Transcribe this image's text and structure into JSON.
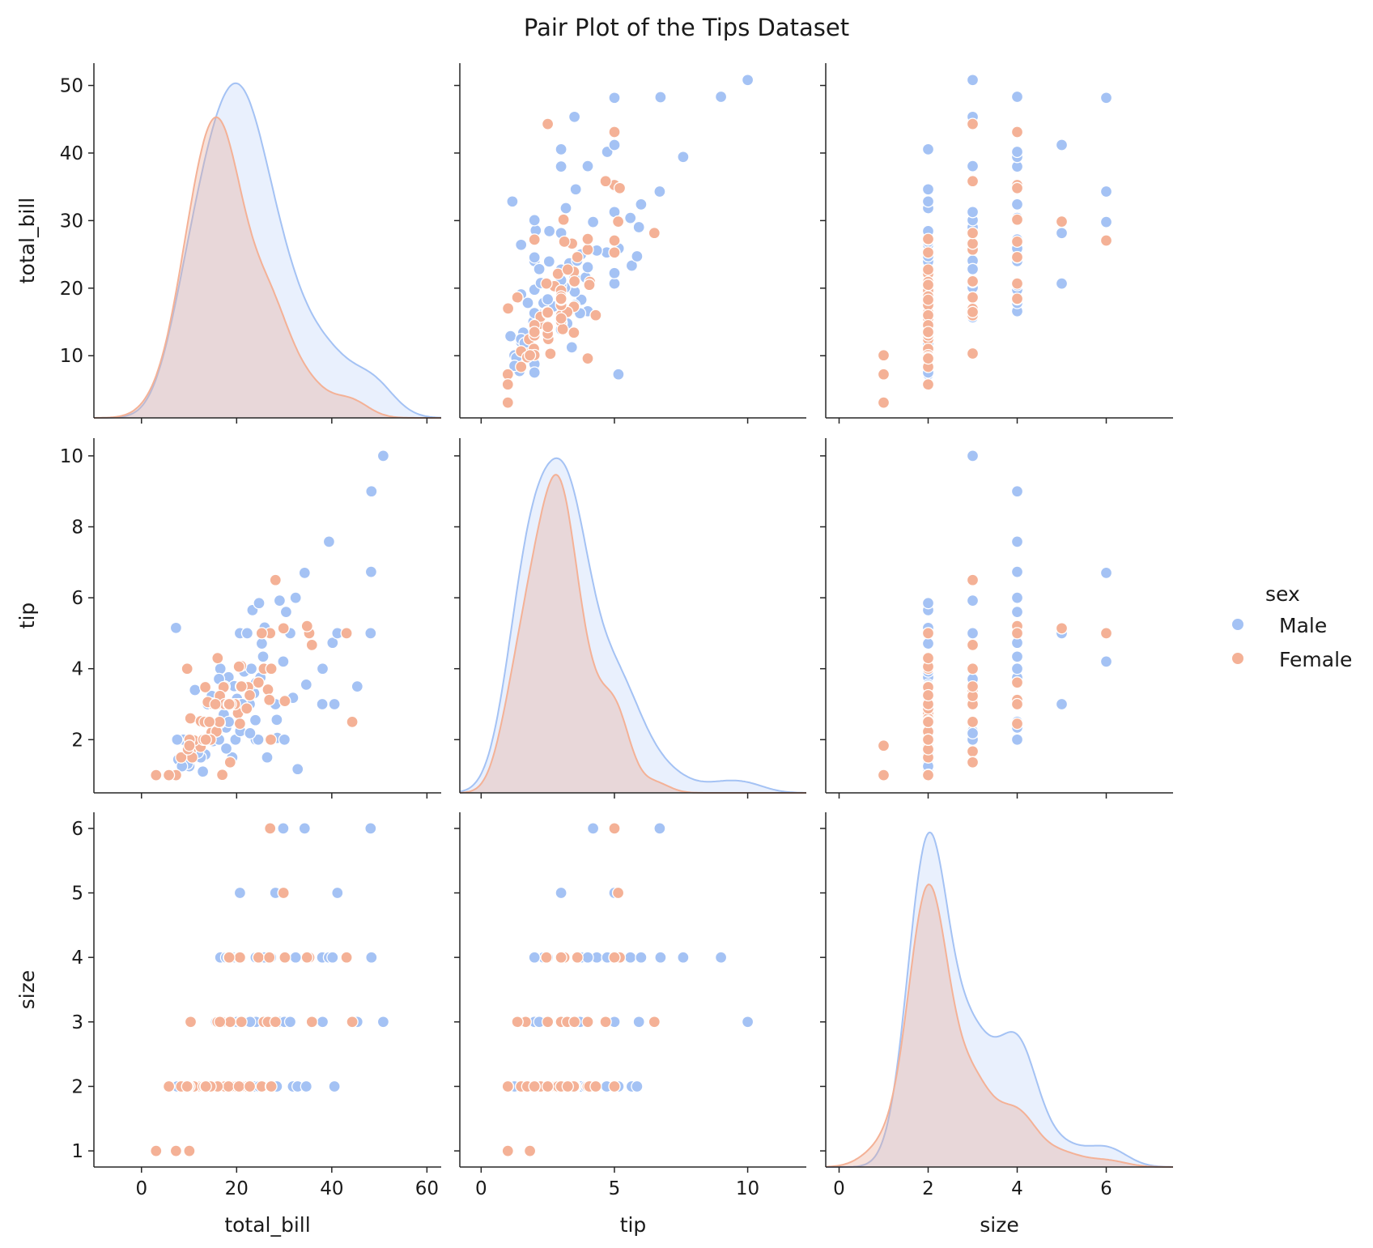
{
  "chart_data": {
    "type": "scatter",
    "title": "Pair Plot of the Tips Dataset",
    "variables": [
      "total_bill",
      "tip",
      "size"
    ],
    "legend": {
      "title": "sex",
      "placement": "right",
      "entries": [
        "Male",
        "Female"
      ]
    },
    "colors": {
      "Male": "#a4c2f4",
      "Female": "#f4b196"
    },
    "axes": {
      "total_bill": {
        "label": "total_bill",
        "lim": [
          -10,
          63
        ],
        "ticks": [
          0,
          20,
          40,
          60
        ],
        "side_lim": [
          0.8,
          53.3
        ],
        "side_ticks": [
          10,
          20,
          30,
          40,
          50
        ]
      },
      "tip": {
        "label": "tip",
        "lim": [
          -0.8,
          12.2
        ],
        "ticks": [
          0,
          5,
          10
        ],
        "side_lim": [
          0.5,
          10.5
        ],
        "side_ticks": [
          2,
          4,
          6,
          8,
          10
        ]
      },
      "size": {
        "label": "size",
        "lim": [
          -0.3,
          7.5
        ],
        "ticks": [
          0,
          2,
          4,
          6
        ],
        "side_lim": [
          0.75,
          6.25
        ],
        "side_ticks": [
          1,
          2,
          3,
          4,
          5,
          6
        ]
      }
    },
    "series": [
      {
        "name": "Male",
        "points": [
          [
            7.25,
            5.15,
            2
          ],
          [
            7.74,
            1.44,
            2
          ],
          [
            8.77,
            2.0,
            2
          ],
          [
            9.55,
            1.45,
            2
          ],
          [
            10.07,
            1.25,
            2
          ],
          [
            10.33,
            2.0,
            2
          ],
          [
            11.24,
            3.4,
            2
          ],
          [
            12.03,
            1.5,
            2
          ],
          [
            12.9,
            1.1,
            2
          ],
          [
            13.0,
            2.0,
            2
          ],
          [
            13.42,
            1.58,
            2
          ],
          [
            13.9,
            3.0,
            2
          ],
          [
            14.07,
            2.5,
            2
          ],
          [
            14.78,
            3.23,
            2
          ],
          [
            15.04,
            1.96,
            2
          ],
          [
            15.77,
            2.23,
            2
          ],
          [
            16.04,
            2.24,
            3
          ],
          [
            16.31,
            2.0,
            3
          ],
          [
            16.58,
            4.0,
            4
          ],
          [
            16.93,
            3.07,
            3
          ],
          [
            17.29,
            2.71,
            2
          ],
          [
            17.81,
            2.34,
            4
          ],
          [
            18.04,
            3.0,
            2
          ],
          [
            18.29,
            3.76,
            2
          ],
          [
            18.35,
            2.5,
            4
          ],
          [
            19.08,
            1.5,
            2
          ],
          [
            19.44,
            3.0,
            2
          ],
          [
            19.49,
            3.51,
            2
          ],
          [
            19.77,
            2.0,
            4
          ],
          [
            20.08,
            3.15,
            3
          ],
          [
            20.29,
            2.75,
            2
          ],
          [
            20.69,
            5.0,
            5
          ],
          [
            20.76,
            2.24,
            2
          ],
          [
            21.01,
            3.5,
            3
          ],
          [
            21.58,
            3.92,
            2
          ],
          [
            22.23,
            5.0,
            2
          ],
          [
            22.49,
            3.5,
            2
          ],
          [
            22.76,
            3.0,
            2
          ],
          [
            23.1,
            4.0,
            3
          ],
          [
            23.33,
            5.65,
            2
          ],
          [
            23.68,
            3.31,
            2
          ],
          [
            24.01,
            2.0,
            4
          ],
          [
            24.06,
            3.6,
            3
          ],
          [
            24.55,
            2.0,
            4
          ],
          [
            25.0,
            3.75,
            4
          ],
          [
            25.29,
            4.71,
            2
          ],
          [
            25.56,
            4.34,
            4
          ],
          [
            25.89,
            5.16,
            4
          ],
          [
            26.41,
            1.5,
            2
          ],
          [
            26.86,
            3.14,
            2
          ],
          [
            28.15,
            3.0,
            5
          ],
          [
            28.44,
            2.56,
            2
          ],
          [
            28.55,
            2.05,
            3
          ],
          [
            29.03,
            5.92,
            3
          ],
          [
            30.06,
            2.0,
            3
          ],
          [
            30.4,
            5.6,
            4
          ],
          [
            31.27,
            5.0,
            3
          ],
          [
            31.85,
            3.18,
            2
          ],
          [
            32.4,
            6.0,
            4
          ],
          [
            32.83,
            1.17,
            2
          ],
          [
            34.3,
            6.7,
            6
          ],
          [
            34.63,
            3.55,
            2
          ],
          [
            34.81,
            5.2,
            4
          ],
          [
            38.01,
            3.0,
            4
          ],
          [
            38.07,
            4.0,
            3
          ],
          [
            39.42,
            7.58,
            4
          ],
          [
            40.17,
            4.73,
            4
          ],
          [
            40.55,
            3.0,
            2
          ],
          [
            41.19,
            5.0,
            5
          ],
          [
            45.35,
            3.5,
            3
          ],
          [
            48.17,
            5.0,
            6
          ],
          [
            48.27,
            6.73,
            4
          ],
          [
            48.33,
            9.0,
            4
          ],
          [
            50.81,
            10.0,
            3
          ],
          [
            7.51,
            2.0,
            2
          ],
          [
            9.68,
            1.32,
            2
          ],
          [
            12.46,
            1.5,
            2
          ],
          [
            15.06,
            3.0,
            2
          ],
          [
            17.47,
            3.5,
            2
          ],
          [
            23.95,
            2.55,
            2
          ],
          [
            22.82,
            2.18,
            3
          ],
          [
            20.9,
            3.5,
            3
          ],
          [
            21.5,
            3.5,
            2
          ],
          [
            17.82,
            1.75,
            2
          ],
          [
            8.51,
            1.25,
            2
          ],
          [
            11.87,
            1.63,
            2
          ],
          [
            13.81,
            2.0,
            2
          ],
          [
            16.29,
            3.71,
            3
          ],
          [
            20.45,
            3.0,
            4
          ],
          [
            24.71,
            5.85,
            2
          ],
          [
            27.2,
            4.0,
            4
          ],
          [
            15.69,
            3.0,
            3
          ],
          [
            21.16,
            3.0,
            2
          ],
          [
            29.8,
            4.2,
            6
          ]
        ]
      },
      {
        "name": "Female",
        "points": [
          [
            16.99,
            1.01,
            2
          ],
          [
            24.59,
            3.61,
            4
          ],
          [
            35.26,
            5.0,
            4
          ],
          [
            14.83,
            3.02,
            2
          ],
          [
            10.33,
            1.67,
            3
          ],
          [
            10.29,
            2.6,
            2
          ],
          [
            34.81,
            5.2,
            4
          ],
          [
            14.73,
            2.2,
            2
          ],
          [
            16.45,
            2.47,
            2
          ],
          [
            20.29,
            2.75,
            2
          ],
          [
            15.77,
            2.23,
            2
          ],
          [
            19.65,
            3.0,
            2
          ],
          [
            15.06,
            3.0,
            2
          ],
          [
            20.69,
            2.45,
            4
          ],
          [
            16.93,
            3.07,
            3
          ],
          [
            10.29,
            2.6,
            2
          ],
          [
            17.26,
            3.48,
            2
          ],
          [
            13.94,
            3.06,
            2
          ],
          [
            12.48,
            2.52,
            2
          ],
          [
            22.42,
            3.48,
            2
          ],
          [
            29.85,
            5.14,
            5
          ],
          [
            18.64,
            1.36,
            3
          ],
          [
            27.05,
            5.0,
            6
          ],
          [
            43.11,
            5.0,
            4
          ],
          [
            7.25,
            1.0,
            1
          ],
          [
            25.71,
            4.0,
            3
          ],
          [
            10.65,
            1.5,
            2
          ],
          [
            8.35,
            1.5,
            2
          ],
          [
            18.64,
            1.36,
            3
          ],
          [
            12.43,
            1.8,
            2
          ],
          [
            11.02,
            1.98,
            2
          ],
          [
            44.3,
            2.5,
            3
          ],
          [
            22.12,
            2.88,
            2
          ],
          [
            10.09,
            2.0,
            2
          ],
          [
            26.59,
            3.41,
            3
          ],
          [
            3.07,
            1.0,
            1
          ],
          [
            5.75,
            1.0,
            2
          ],
          [
            13.27,
            2.5,
            2
          ],
          [
            28.17,
            6.5,
            3
          ],
          [
            30.14,
            3.09,
            4
          ],
          [
            15.98,
            3.0,
            3
          ],
          [
            16.27,
            2.5,
            2
          ],
          [
            25.28,
            5.0,
            2
          ],
          [
            35.83,
            4.67,
            3
          ],
          [
            27.18,
            2.0,
            2
          ],
          [
            29.85,
            5.14,
            5
          ],
          [
            9.78,
            1.73,
            2
          ],
          [
            18.78,
            3.0,
            2
          ],
          [
            16.47,
            3.23,
            3
          ],
          [
            13.0,
            2.0,
            2
          ],
          [
            16.4,
            2.5,
            2
          ],
          [
            20.92,
            4.08,
            2
          ],
          [
            26.88,
            3.12,
            4
          ],
          [
            17.51,
            3.0,
            2
          ],
          [
            10.07,
            1.83,
            1
          ],
          [
            13.42,
            3.48,
            2
          ],
          [
            14.26,
            2.5,
            2
          ],
          [
            15.53,
            3.0,
            2
          ],
          [
            18.29,
            3.0,
            2
          ],
          [
            21.01,
            3.5,
            3
          ],
          [
            18.43,
            3.0,
            4
          ],
          [
            27.28,
            4.0,
            2
          ],
          [
            9.6,
            4.0,
            2
          ],
          [
            20.49,
            4.06,
            2
          ],
          [
            22.75,
            3.25,
            2
          ],
          [
            16.0,
            4.3,
            2
          ],
          [
            14.52,
            2.0,
            2
          ],
          [
            13.51,
            2.0,
            2
          ]
        ]
      }
    ]
  }
}
